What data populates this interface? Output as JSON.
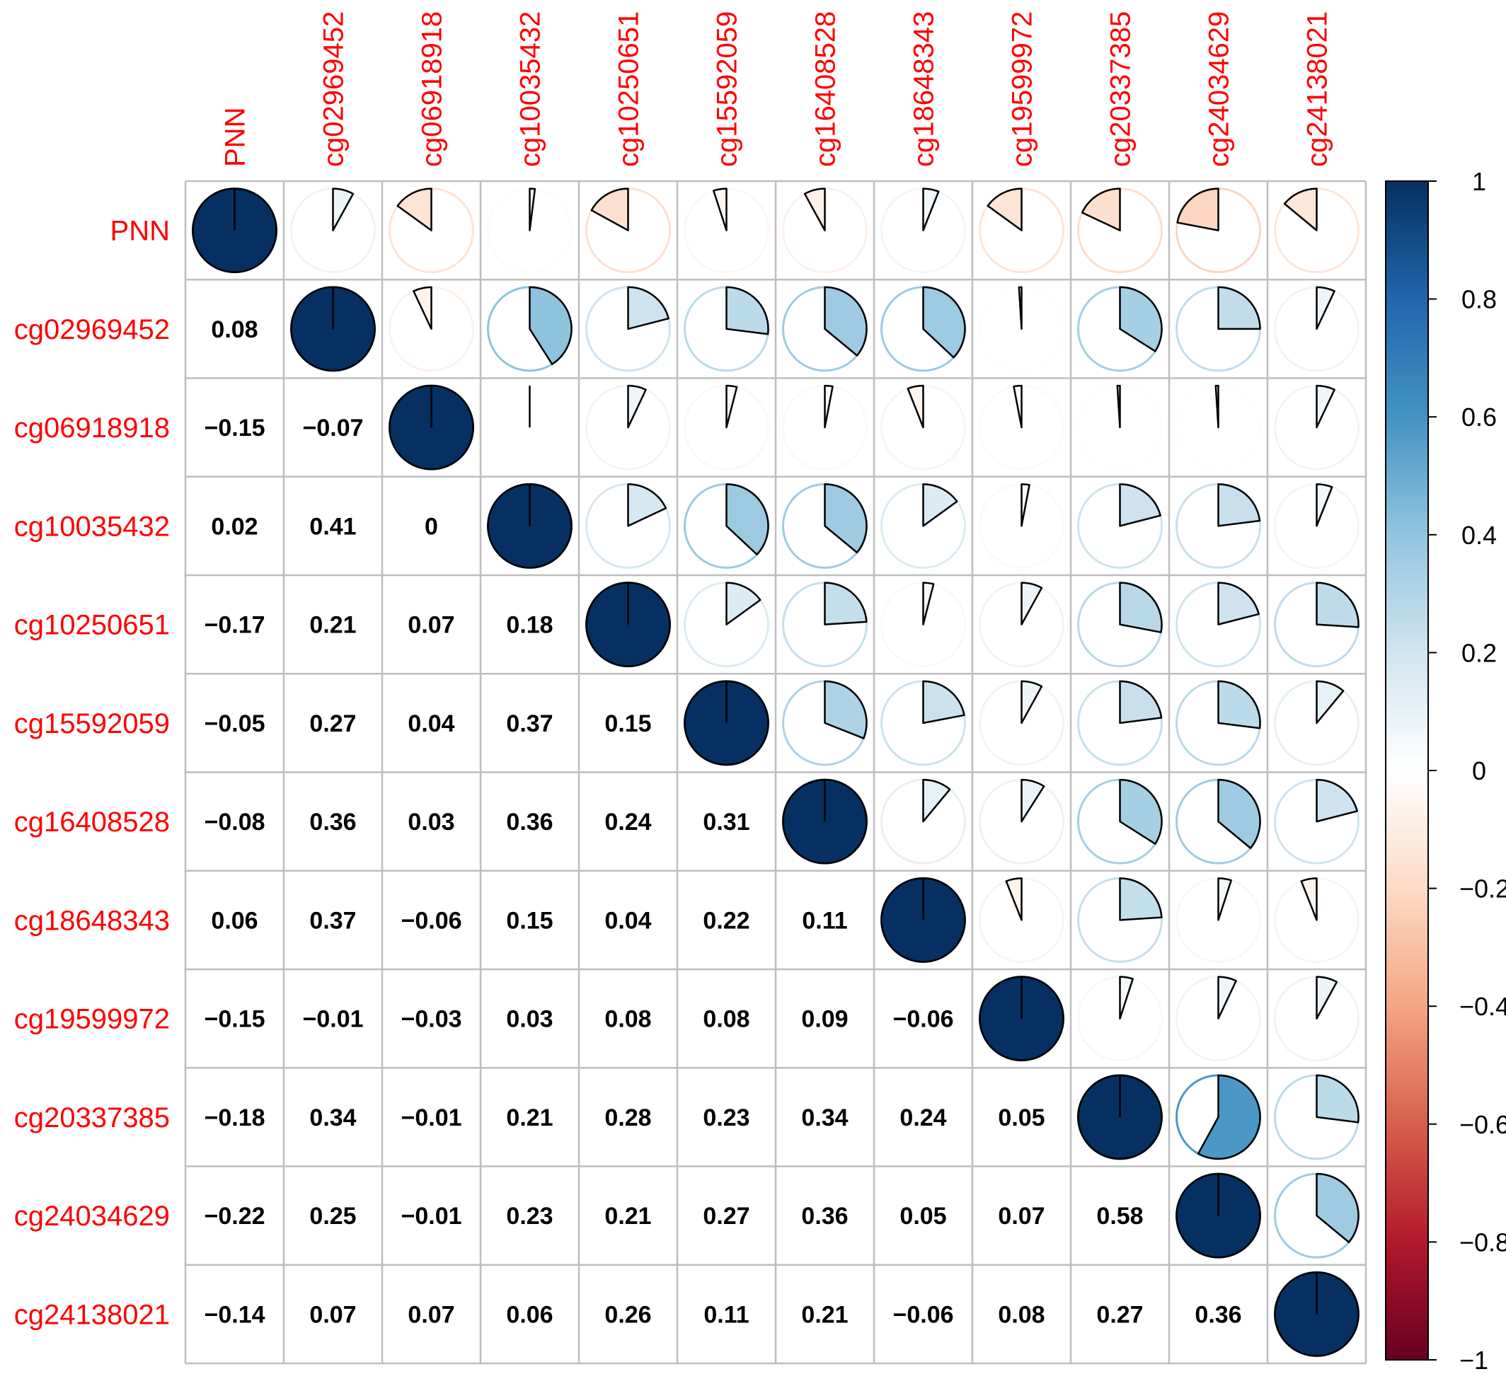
{
  "chart_data": {
    "type": "heatmap",
    "variables": [
      "PNN",
      "cg02969452",
      "cg06918918",
      "cg10035432",
      "cg10250651",
      "cg15592059",
      "cg16408528",
      "cg18648343",
      "cg19599972",
      "cg20337385",
      "cg24034629",
      "cg24138021"
    ],
    "matrix": [
      [
        1,
        0.08,
        -0.15,
        0.02,
        -0.17,
        -0.05,
        -0.08,
        0.06,
        -0.15,
        -0.18,
        -0.22,
        -0.14
      ],
      [
        0.08,
        1,
        -0.07,
        0.41,
        0.21,
        0.27,
        0.36,
        0.37,
        -0.01,
        0.34,
        0.25,
        0.07
      ],
      [
        -0.15,
        -0.07,
        1,
        0,
        0.07,
        0.04,
        0.03,
        -0.06,
        -0.03,
        -0.01,
        -0.01,
        0.07
      ],
      [
        0.02,
        0.41,
        0,
        1,
        0.18,
        0.37,
        0.36,
        0.15,
        0.03,
        0.21,
        0.23,
        0.06
      ],
      [
        -0.17,
        0.21,
        0.07,
        0.18,
        1,
        0.15,
        0.24,
        0.04,
        0.08,
        0.28,
        0.21,
        0.26
      ],
      [
        -0.05,
        0.27,
        0.04,
        0.37,
        0.15,
        1,
        0.31,
        0.22,
        0.08,
        0.23,
        0.27,
        0.11
      ],
      [
        -0.08,
        0.36,
        0.03,
        0.36,
        0.24,
        0.31,
        1,
        0.11,
        0.09,
        0.34,
        0.36,
        0.21
      ],
      [
        0.06,
        0.37,
        -0.06,
        0.15,
        0.04,
        0.22,
        0.11,
        1,
        -0.06,
        0.24,
        0.05,
        -0.06
      ],
      [
        -0.15,
        -0.01,
        -0.03,
        0.03,
        0.08,
        0.08,
        0.09,
        -0.06,
        1,
        0.05,
        0.07,
        0.08
      ],
      [
        -0.18,
        0.34,
        -0.01,
        0.21,
        0.28,
        0.23,
        0.34,
        0.24,
        0.05,
        1,
        0.58,
        0.27
      ],
      [
        -0.22,
        0.25,
        -0.01,
        0.23,
        0.21,
        0.27,
        0.36,
        0.05,
        0.07,
        0.58,
        1,
        0.36
      ],
      [
        -0.14,
        0.07,
        0.07,
        0.06,
        0.26,
        0.11,
        0.21,
        -0.06,
        0.08,
        0.27,
        0.36,
        1
      ]
    ],
    "lower_triangle": "number",
    "upper_triangle": "pie",
    "diagonal": "pie",
    "value_labels_lower": [
      [
        "0.08"
      ],
      [
        "−0.15",
        "−0.07"
      ],
      [
        "0.02",
        "0.41",
        "0"
      ],
      [
        "−0.17",
        "0.21",
        "0.07",
        "0.18"
      ],
      [
        "−0.05",
        "0.27",
        "0.04",
        "0.37",
        "0.15"
      ],
      [
        "−0.08",
        "0.36",
        "0.03",
        "0.36",
        "0.24",
        "0.31"
      ],
      [
        "0.06",
        "0.37",
        "−0.06",
        "0.15",
        "0.04",
        "0.22",
        "0.11"
      ],
      [
        "−0.15",
        "−0.01",
        "−0.03",
        "0.03",
        "0.08",
        "0.08",
        "0.09",
        "−0.06"
      ],
      [
        "−0.18",
        "0.34",
        "−0.01",
        "0.21",
        "0.28",
        "0.23",
        "0.34",
        "0.24",
        "0.05"
      ],
      [
        "−0.22",
        "0.25",
        "−0.01",
        "0.23",
        "0.21",
        "0.27",
        "0.36",
        "0.05",
        "0.07",
        "0.58"
      ],
      [
        "−0.14",
        "0.07",
        "0.07",
        "0.06",
        "0.26",
        "0.11",
        "0.21",
        "−0.06",
        "0.08",
        "0.27",
        "0.36"
      ]
    ],
    "colorbar": {
      "range": [
        -1,
        1
      ],
      "ticks": [
        1,
        0.8,
        0.6,
        0.4,
        0.2,
        0,
        -0.2,
        -0.4,
        -0.6,
        -0.8,
        -1
      ],
      "tick_labels": [
        "1",
        "0.8",
        "0.6",
        "0.4",
        "0.2",
        "0",
        "−0.2",
        "−0.4",
        "−0.6",
        "−0.8",
        "−1"
      ],
      "palette": [
        "#67001F",
        "#B2182B",
        "#D6604D",
        "#F4A582",
        "#FDDBC7",
        "#FFFFFF",
        "#D1E5F0",
        "#92C5DE",
        "#4393C3",
        "#2166AC",
        "#053061"
      ]
    },
    "label_color": "#FF0000",
    "grid_color": "#BEBEBE",
    "legend_position": "right",
    "title": "",
    "xlabel": "",
    "ylabel": ""
  }
}
